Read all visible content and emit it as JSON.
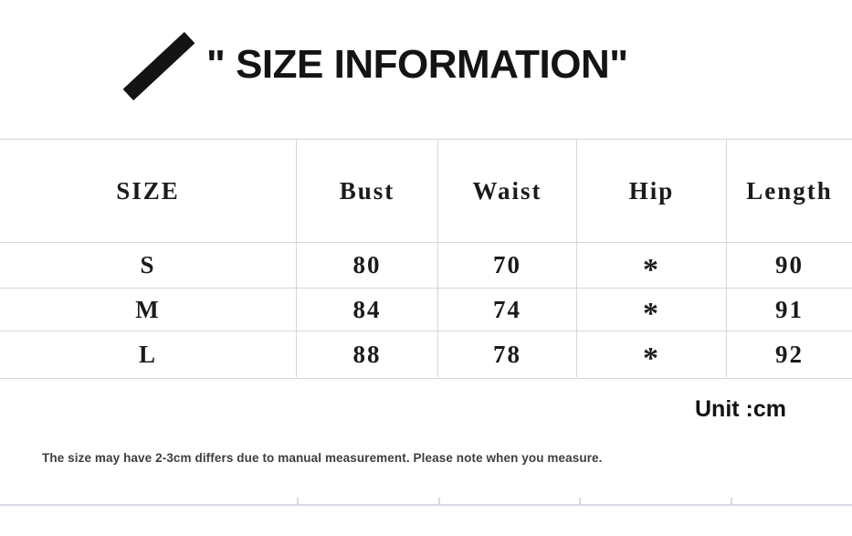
{
  "title": "\" SIZE INFORMATION\"",
  "unit_label": "Unit :cm",
  "footnote": "The size may have 2-3cm differs due to manual measurement. Please note when you measure.",
  "icons": {
    "slash_icon": "black-diagonal-slash"
  },
  "colors": {
    "background": "#ffffff",
    "table_line": "#d5d5df",
    "text": "#1b1b1b",
    "note_text": "#3e3e3e"
  },
  "chart_data": {
    "type": "table",
    "title": "SIZE INFORMATION",
    "unit": "cm",
    "columns": [
      "SIZE",
      "Bust",
      "Waist",
      "Hip",
      "Length"
    ],
    "rows": [
      [
        "S",
        "80",
        "70",
        "*",
        "90"
      ],
      [
        "M",
        "84",
        "74",
        "*",
        "91"
      ],
      [
        "L",
        "88",
        "78",
        "*",
        "92"
      ]
    ],
    "layout_hints": {
      "grid": true,
      "header_row": true,
      "hip_values_not_provided": "*"
    }
  }
}
